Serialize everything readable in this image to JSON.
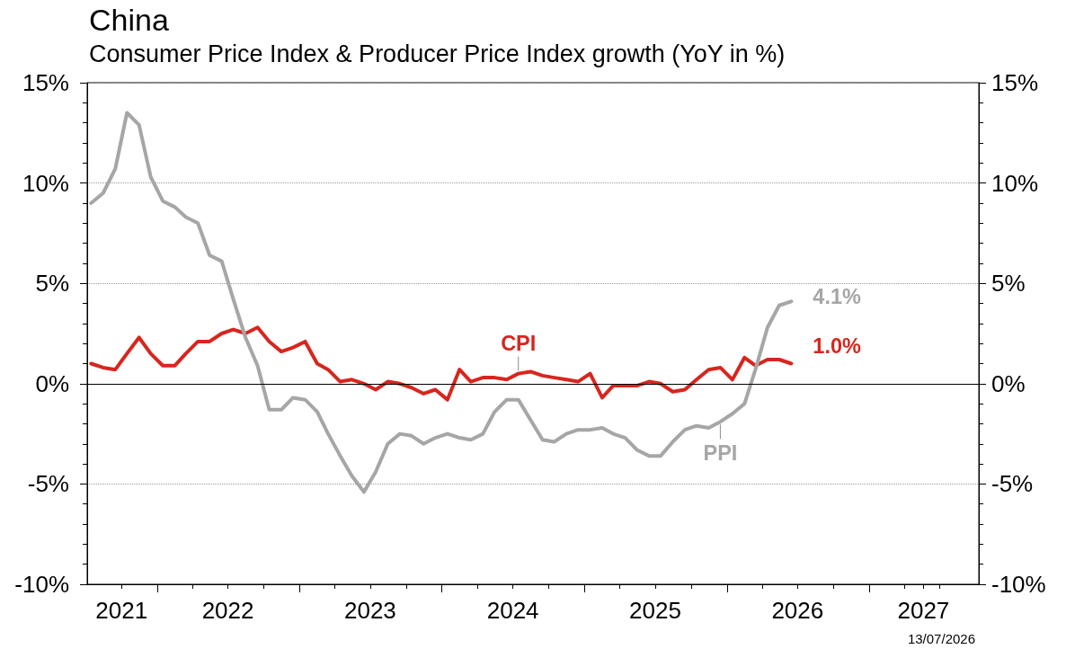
{
  "chart_data": {
    "type": "line",
    "title": "China",
    "subtitle": "Consumer Price Index & Producer Price Index growth (YoY in %)",
    "annotations": [
      "13/07/2026"
    ],
    "x": [
      "2021-07-15",
      "2021-08-15",
      "2021-09-15",
      "2021-10-15",
      "2021-11-15",
      "2021-12-15",
      "2022-01-15",
      "2022-02-15",
      "2022-03-15",
      "2022-04-15",
      "2022-05-15",
      "2022-06-15",
      "2022-07-15",
      "2022-08-15",
      "2022-09-15",
      "2022-10-15",
      "2022-11-15",
      "2022-12-15",
      "2023-01-15",
      "2023-02-15",
      "2023-03-15",
      "2023-04-15",
      "2023-05-15",
      "2023-06-15",
      "2023-07-15",
      "2023-08-15",
      "2023-09-15",
      "2023-10-15",
      "2023-11-15",
      "2023-12-15",
      "2024-01-15",
      "2024-02-15",
      "2024-03-15",
      "2024-04-15",
      "2024-05-15",
      "2024-06-15",
      "2024-07-15",
      "2024-08-15",
      "2024-09-15",
      "2024-10-15",
      "2024-11-15",
      "2024-12-15",
      "2025-01-15",
      "2025-02-15",
      "2025-03-15",
      "2025-04-15",
      "2025-05-15",
      "2025-06-15",
      "2025-07-15",
      "2025-08-15",
      "2025-09-15",
      "2025-10-15",
      "2025-11-15",
      "2025-12-15",
      "2026-01-15",
      "2026-02-15",
      "2026-03-15",
      "2026-04-15",
      "2026-05-15",
      "2026-06-15"
    ],
    "series": [
      {
        "name": "CPI",
        "color": "#d7261e",
        "values": [
          1.0,
          0.8,
          0.7,
          1.5,
          2.3,
          1.5,
          0.9,
          0.9,
          1.5,
          2.1,
          2.1,
          2.5,
          2.7,
          2.5,
          2.8,
          2.1,
          1.6,
          1.8,
          2.1,
          1.0,
          0.7,
          0.1,
          0.2,
          0.0,
          -0.3,
          0.1,
          0.0,
          -0.2,
          -0.5,
          -0.3,
          -0.8,
          0.7,
          0.1,
          0.3,
          0.3,
          0.2,
          0.5,
          0.6,
          0.4,
          0.3,
          0.2,
          0.1,
          0.5,
          -0.7,
          -0.1,
          -0.1,
          -0.1,
          0.1,
          0.0,
          -0.4,
          -0.3,
          0.2,
          0.7,
          0.8,
          0.2,
          1.3,
          0.9,
          1.2,
          1.2,
          1.0
        ],
        "value_labels": [
          null,
          null,
          null,
          null,
          null,
          null,
          null,
          null,
          null,
          null,
          null,
          null,
          null,
          null,
          null,
          null,
          null,
          null,
          null,
          null,
          null,
          null,
          null,
          null,
          null,
          null,
          null,
          null,
          null,
          null,
          null,
          null,
          null,
          null,
          null,
          null,
          null,
          null,
          null,
          null,
          null,
          null,
          null,
          null,
          null,
          null,
          null,
          null,
          null,
          null,
          null,
          null,
          null,
          null,
          null,
          null,
          null,
          null,
          null,
          "1.0%"
        ]
      },
      {
        "name": "PPI",
        "color": "#a6a6a6",
        "values": [
          9.0,
          9.5,
          10.7,
          13.5,
          12.9,
          10.3,
          9.1,
          8.8,
          8.3,
          8.0,
          6.4,
          6.1,
          4.2,
          2.3,
          0.9,
          -1.3,
          -1.3,
          -0.7,
          -0.8,
          -1.4,
          -2.5,
          -3.6,
          -4.6,
          -5.4,
          -4.4,
          -3.0,
          -2.5,
          -2.6,
          -3.0,
          -2.7,
          -2.5,
          -2.7,
          -2.8,
          -2.5,
          -1.4,
          -0.8,
          -0.8,
          -1.8,
          -2.8,
          -2.9,
          -2.5,
          -2.3,
          -2.3,
          -2.2,
          -2.5,
          -2.7,
          -3.3,
          -3.6,
          -3.6,
          -2.9,
          -2.3,
          -2.1,
          -2.2,
          -1.9,
          -1.5,
          -1.0,
          0.7,
          2.8,
          3.9,
          4.1
        ],
        "value_labels": [
          null,
          null,
          null,
          null,
          null,
          null,
          null,
          null,
          null,
          null,
          null,
          null,
          null,
          null,
          null,
          null,
          null,
          null,
          null,
          null,
          null,
          null,
          null,
          null,
          null,
          null,
          null,
          null,
          null,
          null,
          null,
          null,
          null,
          null,
          null,
          null,
          null,
          null,
          null,
          null,
          null,
          null,
          null,
          null,
          null,
          null,
          null,
          null,
          null,
          null,
          null,
          null,
          null,
          null,
          null,
          null,
          null,
          null,
          null,
          "4.1%"
        ]
      }
    ],
    "xlim": [
      "2021-07-05",
      "2027-10-09"
    ],
    "xticks": [
      {
        "value": "2021-10",
        "label": "2021"
      },
      {
        "value": "2022-01",
        "label": null
      },
      {
        "value": "2022-04",
        "label": null
      },
      {
        "value": "2022-07",
        "label": "2022"
      },
      {
        "value": "2022-10",
        "label": null
      },
      {
        "value": "2023-01",
        "label": null
      },
      {
        "value": "2023-04",
        "label": null
      },
      {
        "value": "2023-07",
        "label": "2023"
      },
      {
        "value": "2023-10",
        "label": null
      },
      {
        "value": "2024-01",
        "label": null
      },
      {
        "value": "2024-04",
        "label": null
      },
      {
        "value": "2024-07",
        "label": "2024"
      },
      {
        "value": "2024-10",
        "label": null
      },
      {
        "value": "2025-01",
        "label": null
      },
      {
        "value": "2025-04",
        "label": null
      },
      {
        "value": "2025-07",
        "label": "2025"
      },
      {
        "value": "2025-10",
        "label": null
      },
      {
        "value": "2026-01",
        "label": null
      },
      {
        "value": "2026-04",
        "label": null
      },
      {
        "value": "2026-07",
        "label": "2026"
      },
      {
        "value": "2026-10",
        "label": null
      },
      {
        "value": "2027-01",
        "label": null
      },
      {
        "value": "2027-04",
        "label": null
      },
      {
        "value": "2027-05-20",
        "label": "2027"
      },
      {
        "value": "2027-07",
        "label": null
      }
    ],
    "ylim": [
      -10,
      15
    ],
    "yticks": [
      {
        "value": -10,
        "label": "-10%"
      },
      {
        "value": -9,
        "label": null
      },
      {
        "value": -8,
        "label": null
      },
      {
        "value": -7,
        "label": null
      },
      {
        "value": -6,
        "label": null
      },
      {
        "value": -5,
        "label": "-5%"
      },
      {
        "value": -4,
        "label": null
      },
      {
        "value": -3,
        "label": null
      },
      {
        "value": -2,
        "label": null
      },
      {
        "value": -1,
        "label": null
      },
      {
        "value": 0,
        "label": "0%"
      },
      {
        "value": 1,
        "label": null
      },
      {
        "value": 2,
        "label": null
      },
      {
        "value": 3,
        "label": null
      },
      {
        "value": 4,
        "label": null
      },
      {
        "value": 5,
        "label": "5%"
      },
      {
        "value": 6,
        "label": null
      },
      {
        "value": 7,
        "label": null
      },
      {
        "value": 8,
        "label": null
      },
      {
        "value": 9,
        "label": null
      },
      {
        "value": 10,
        "label": "10%"
      },
      {
        "value": 11,
        "label": null
      },
      {
        "value": 12,
        "label": null
      },
      {
        "value": 13,
        "label": null
      },
      {
        "value": 14,
        "label": null
      },
      {
        "value": 15,
        "label": "15%"
      }
    ],
    "y2lim": [
      -10,
      15
    ],
    "y2ticks": [
      {
        "value": -10,
        "label": "-10%"
      },
      {
        "value": -9,
        "label": null
      },
      {
        "value": -8,
        "label": null
      },
      {
        "value": -7,
        "label": null
      },
      {
        "value": -6,
        "label": null
      },
      {
        "value": -5,
        "label": "-5%"
      },
      {
        "value": -4,
        "label": null
      },
      {
        "value": -3,
        "label": null
      },
      {
        "value": -2,
        "label": null
      },
      {
        "value": -1,
        "label": null
      },
      {
        "value": 0,
        "label": "0%"
      },
      {
        "value": 1,
        "label": null
      },
      {
        "value": 2,
        "label": null
      },
      {
        "value": 3,
        "label": null
      },
      {
        "value": 4,
        "label": null
      },
      {
        "value": 5,
        "label": "5%"
      },
      {
        "value": 6,
        "label": null
      },
      {
        "value": 7,
        "label": null
      },
      {
        "value": 8,
        "label": null
      },
      {
        "value": 9,
        "label": null
      },
      {
        "value": 10,
        "label": "10%"
      },
      {
        "value": 11,
        "label": null
      },
      {
        "value": 12,
        "label": null
      },
      {
        "value": 13,
        "label": null
      },
      {
        "value": 14,
        "label": null
      },
      {
        "value": 15,
        "label": "15%"
      }
    ],
    "ref_lines": [
      {
        "axis": "y",
        "value": 0,
        "color": "#000000"
      }
    ],
    "grid": "y",
    "marker": "none"
  }
}
